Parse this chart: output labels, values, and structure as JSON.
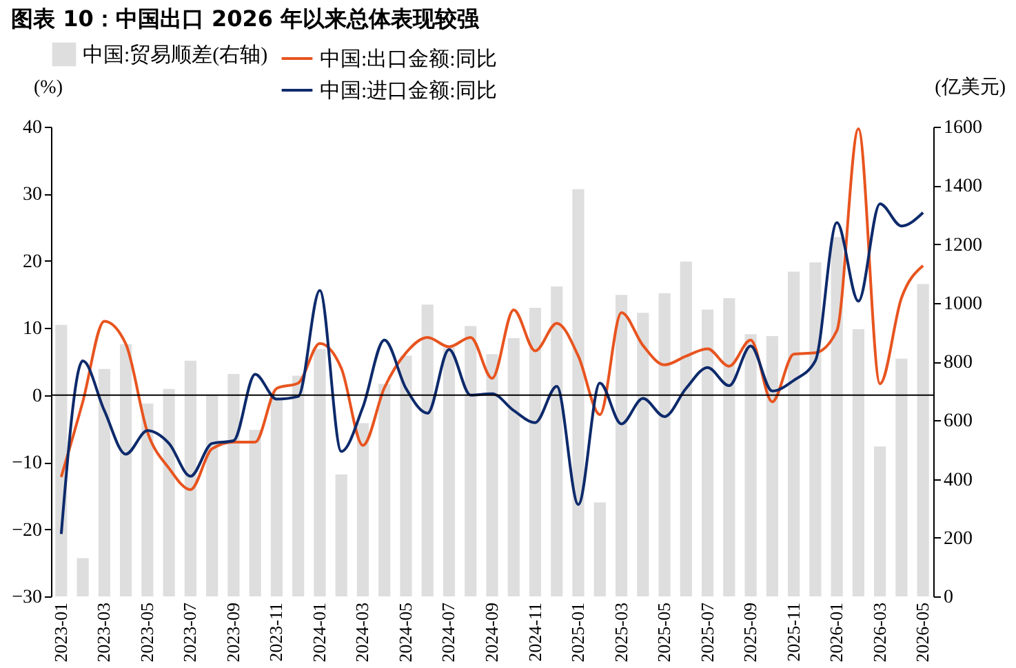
{
  "chart_data": {
    "type": "bar",
    "title": "图表 10：中国出口 2026 年以来总体表现较强",
    "categories": [
      "2023-01",
      null,
      "2023-03",
      null,
      "2023-05",
      null,
      "2023-07",
      null,
      "2023-09",
      null,
      "2023-11",
      null,
      "2024-01",
      null,
      "2024-03",
      null,
      "2024-05",
      null,
      "2024-07",
      null,
      "2024-09",
      null,
      "2024-11",
      null,
      "2025-01",
      null,
      "2025-03",
      null,
      "2025-05",
      null,
      "2025-07",
      null,
      "2025-09",
      null,
      "2025-11",
      null,
      "2026-01",
      null,
      "2026-03",
      null,
      "2026-05"
    ],
    "series": [
      {
        "name": "中国:贸易顺差(右轴)",
        "axis": "y2",
        "color": "#dedede",
        "values": [
          925,
          130,
          775,
          859,
          657,
          707,
          803,
          685,
          758,
          567,
          674,
          752,
          842,
          415,
          590,
          724,
          820,
          994,
          848,
          921,
          825,
          880,
          983,
          1056,
          1387,
          320,
          1027,
          966,
          1033,
          1141,
          977,
          1016,
          893,
          887,
          1106,
          1138,
          1224,
          910,
          511,
          810,
          1064
        ]
      },
      {
        "name": "中国:出口金额:同比",
        "type": "line",
        "color": "#e8541f",
        "values": [
          -12.2,
          -1.0,
          11.0,
          7.6,
          -5.5,
          -10.9,
          -14.1,
          -8.0,
          -7.0,
          -7.0,
          1.0,
          1.8,
          7.7,
          4.0,
          -7.5,
          1.1,
          6.3,
          8.6,
          7.2,
          8.6,
          2.5,
          12.7,
          6.6,
          10.7,
          5.8,
          -2.9,
          12.3,
          7.4,
          4.5,
          5.8,
          6.9,
          4.3,
          8.2,
          -1.0,
          6.1,
          6.3,
          9.6,
          39.7,
          1.7,
          14.5,
          19.3
        ]
      },
      {
        "name": "中国:进口金额:同比",
        "type": "line",
        "color": "#0d2a6b",
        "values": [
          -20.7,
          5.1,
          -2.3,
          -8.8,
          -5.3,
          -7.2,
          -12.1,
          -7.2,
          -6.8,
          3.1,
          -0.6,
          -0.2,
          15.6,
          -8.4,
          -1.8,
          8.2,
          1.0,
          -2.7,
          6.8,
          0.0,
          0.2,
          -2.3,
          -4.1,
          1.3,
          -16.3,
          1.8,
          -4.3,
          -0.5,
          -3.2,
          1.0,
          4.1,
          1.4,
          7.3,
          0.6,
          2.2,
          5.1,
          25.7,
          14.0,
          28.5,
          25.2,
          27.2
        ]
      }
    ],
    "ylabel": "(%)",
    "y2label": "(亿美元)",
    "ylim": [
      -30,
      40
    ],
    "yticks": [
      -30,
      -20,
      -10,
      0,
      10,
      20,
      30,
      40
    ],
    "y2lim": [
      0,
      1600
    ],
    "y2ticks": [
      0,
      200,
      400,
      600,
      800,
      1000,
      1200,
      1400,
      1600
    ],
    "ref_lines": [
      {
        "axis": "y",
        "value": 0,
        "color": "#000000"
      }
    ],
    "legend": "top",
    "grid": false
  }
}
